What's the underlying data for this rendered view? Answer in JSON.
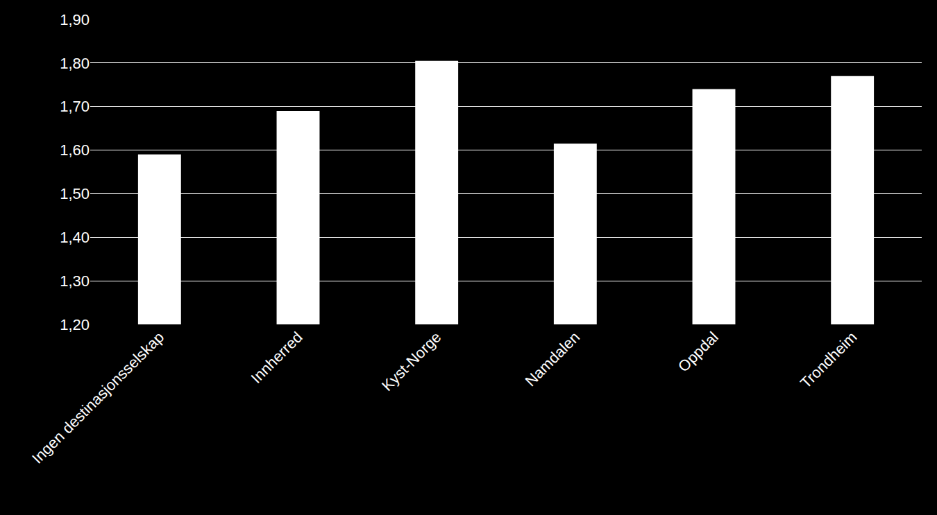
{
  "chart_data": {
    "type": "bar",
    "categories": [
      "Ingen destinasjonsselskap",
      "Innherred",
      "Kyst-Norge",
      "Namdalen",
      "Oppdal",
      "Trondheim"
    ],
    "values": [
      1.59,
      1.69,
      1.805,
      1.615,
      1.74,
      1.77
    ],
    "color": "#ffffff",
    "ylim": [
      1.2,
      1.9
    ],
    "yticks": [
      {
        "value": 1.2,
        "label": "1,20"
      },
      {
        "value": 1.3,
        "label": "1,30"
      },
      {
        "value": 1.4,
        "label": "1,40"
      },
      {
        "value": 1.5,
        "label": "1,50"
      },
      {
        "value": 1.6,
        "label": "1,60"
      },
      {
        "value": 1.7,
        "label": "1,70"
      },
      {
        "value": 1.8,
        "label": "1,80"
      },
      {
        "value": 1.9,
        "label": "1,90"
      }
    ],
    "grid": true
  }
}
